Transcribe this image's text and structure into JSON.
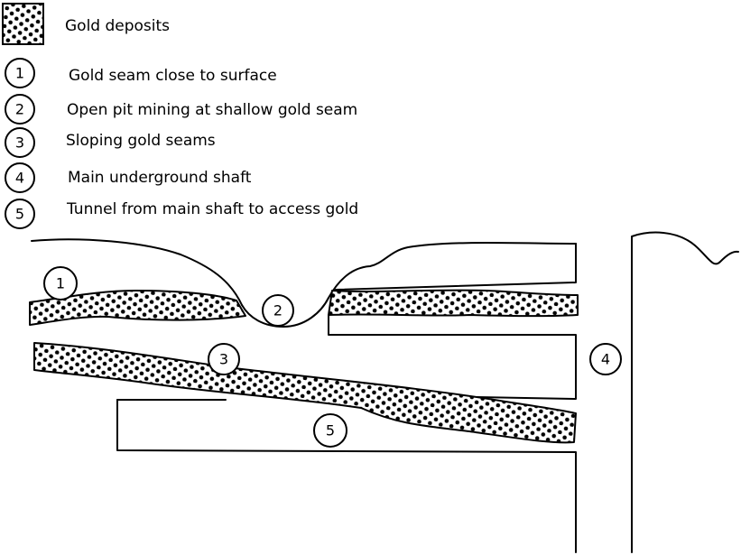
{
  "legend": {
    "gold_deposits": "Gold deposits",
    "items": [
      {
        "number": "1",
        "label": "Gold seam close to surface"
      },
      {
        "number": "2",
        "label": "Open pit mining at shallow gold seam"
      },
      {
        "number": "3",
        "label": "Sloping gold seams"
      },
      {
        "number": "4",
        "label": "Main underground shaft"
      },
      {
        "number": "5",
        "label": "Tunnel from main shaft to access gold"
      }
    ]
  },
  "markers": [
    "1",
    "2",
    "3",
    "4",
    "5"
  ]
}
